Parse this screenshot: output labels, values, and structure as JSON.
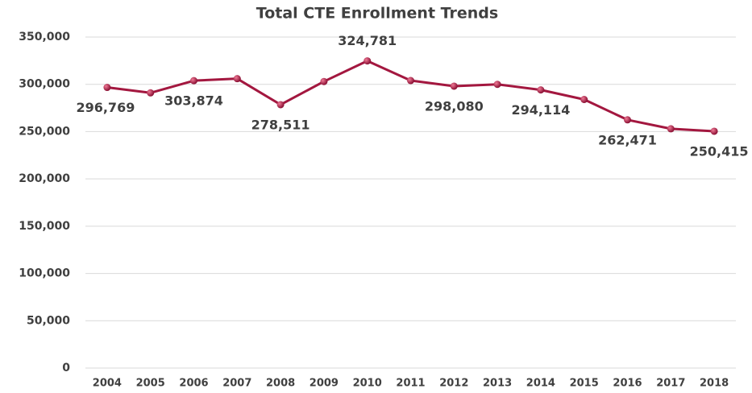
{
  "chart_data": {
    "type": "line",
    "title": "Total CTE Enrollment Trends",
    "categories": [
      "2004",
      "2005",
      "2006",
      "2007",
      "2008",
      "2009",
      "2010",
      "2011",
      "2012",
      "2013",
      "2014",
      "2015",
      "2016",
      "2017",
      "2018"
    ],
    "series": [
      {
        "name": "Total CTE Enrollment",
        "color": "#a3173f",
        "values": [
          296769,
          291000,
          303874,
          306000,
          278511,
          303000,
          324781,
          304000,
          298080,
          300000,
          294114,
          284000,
          262471,
          253000,
          250415
        ],
        "value_labels": [
          "296,769",
          null,
          "303,874",
          null,
          "278,511",
          null,
          "324,781",
          null,
          "298,080",
          null,
          "294,114",
          null,
          "262,471",
          null,
          "250,415"
        ]
      }
    ],
    "ylim": [
      0,
      350000
    ],
    "yticks": [
      0,
      {
        "value": 50000,
        "label": "50,000"
      },
      {
        "value": 100000,
        "label": "100,000"
      },
      {
        "value": 150000,
        "label": "150,000"
      },
      {
        "value": 200000,
        "label": "200,000"
      },
      {
        "value": 250000,
        "label": "250,000"
      },
      {
        "value": 300000,
        "label": "300,000"
      },
      {
        "value": 350000,
        "label": "350,000"
      }
    ],
    "grid": true
  }
}
